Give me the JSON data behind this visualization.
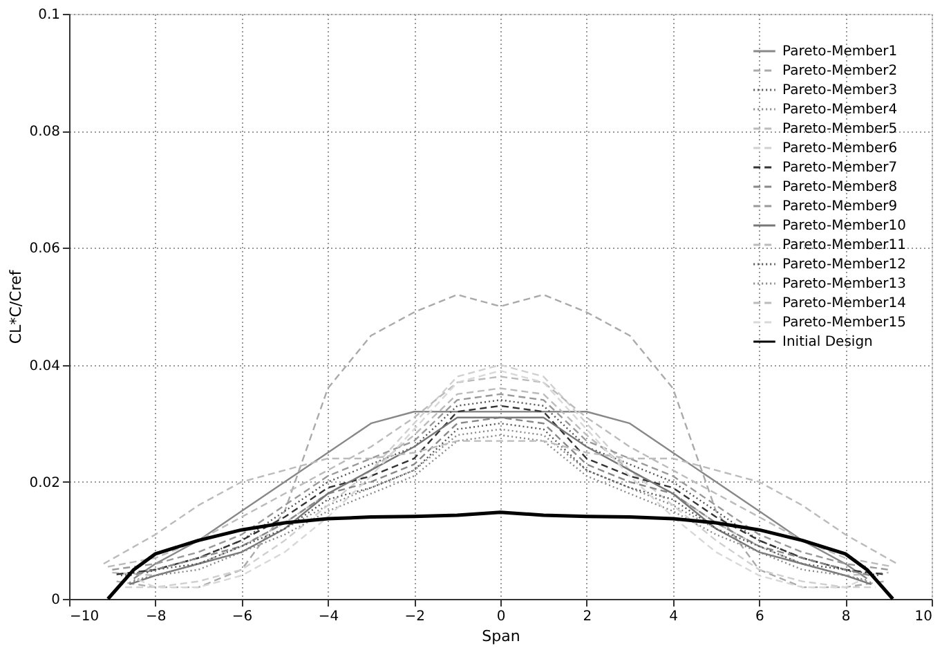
{
  "chart_data": {
    "type": "line",
    "xlabel": "Span",
    "ylabel": "CL*C/Cref",
    "xlim": [
      -10,
      10
    ],
    "xticks": [
      -10,
      -8,
      -6,
      -4,
      -2,
      0,
      2,
      4,
      6,
      8,
      10
    ],
    "ylim": [
      0,
      0.1
    ],
    "yticks": [
      0,
      0.02,
      0.04,
      0.06,
      0.08,
      0.1
    ],
    "grid": true,
    "legend": "top right",
    "marker": "none",
    "series": [
      {
        "name": "Pareto-Member1",
        "color": "#888888",
        "line_style": "solid",
        "x": [
          -8.5,
          -8,
          -7,
          -6,
          -5,
          -4,
          -3,
          -2,
          -1,
          0,
          1,
          2,
          3,
          4,
          5,
          6,
          7,
          8,
          8.5
        ],
        "values": [
          0.0035,
          0.006,
          0.01,
          0.015,
          0.02,
          0.025,
          0.03,
          0.032,
          0.032,
          0.032,
          0.032,
          0.032,
          0.03,
          0.025,
          0.02,
          0.015,
          0.01,
          0.006,
          0.0035
        ]
      },
      {
        "name": "Pareto-Member2",
        "color": "#aaaaaa",
        "line_style": "dashed",
        "x": [
          -8.9,
          -8,
          -7,
          -6,
          -5,
          -4,
          -3,
          -2,
          -1,
          0,
          1,
          2,
          3,
          4,
          5,
          6,
          7,
          8,
          8.9
        ],
        "values": [
          0.003,
          0.002,
          0.002,
          0.005,
          0.015,
          0.036,
          0.045,
          0.049,
          0.052,
          0.05,
          0.052,
          0.049,
          0.045,
          0.036,
          0.015,
          0.005,
          0.002,
          0.002,
          0.003
        ]
      },
      {
        "name": "Pareto-Member3",
        "color": "#555555",
        "line_style": "dotted",
        "x": [
          -8.8,
          -8,
          -7,
          -6,
          -5,
          -4,
          -3,
          -2,
          -1,
          0,
          1,
          2,
          3,
          4,
          5,
          6,
          7,
          8,
          8.8
        ],
        "values": [
          0.004,
          0.005,
          0.007,
          0.01,
          0.015,
          0.02,
          0.023,
          0.026,
          0.033,
          0.034,
          0.033,
          0.026,
          0.023,
          0.02,
          0.015,
          0.01,
          0.007,
          0.005,
          0.004
        ]
      },
      {
        "name": "Pareto-Member4",
        "color": "#888888",
        "line_style": "dotted",
        "x": [
          -8.6,
          -8,
          -7,
          -6,
          -5,
          -4,
          -3,
          -2,
          -1,
          0,
          1,
          2,
          3,
          4,
          5,
          6,
          7,
          8,
          8.6
        ],
        "values": [
          0.0028,
          0.004,
          0.005,
          0.008,
          0.012,
          0.016,
          0.019,
          0.022,
          0.028,
          0.029,
          0.028,
          0.022,
          0.019,
          0.016,
          0.012,
          0.008,
          0.005,
          0.004,
          0.0028
        ]
      },
      {
        "name": "Pareto-Member5",
        "color": "#bbbbbb",
        "line_style": "dashed",
        "x": [
          -9,
          -8,
          -7,
          -6,
          -5,
          -4,
          -3,
          -2,
          -1,
          0,
          1,
          2,
          3,
          4,
          5,
          6,
          7,
          8,
          9
        ],
        "values": [
          0.0045,
          0.004,
          0.006,
          0.009,
          0.013,
          0.018,
          0.022,
          0.028,
          0.035,
          0.036,
          0.035,
          0.028,
          0.022,
          0.018,
          0.013,
          0.009,
          0.006,
          0.004,
          0.0045
        ]
      },
      {
        "name": "Pareto-Member6",
        "color": "#d0d0d0",
        "line_style": "dashed",
        "x": [
          -8.7,
          -8,
          -7,
          -6,
          -5,
          -4,
          -3,
          -2,
          -1,
          0,
          1,
          2,
          3,
          4,
          5,
          6,
          7,
          8,
          8.7
        ],
        "values": [
          0.002,
          0.002,
          0.003,
          0.005,
          0.01,
          0.016,
          0.022,
          0.03,
          0.038,
          0.04,
          0.038,
          0.03,
          0.022,
          0.016,
          0.01,
          0.005,
          0.003,
          0.002,
          0.002
        ]
      },
      {
        "name": "Pareto-Member7",
        "color": "#333333",
        "line_style": "dashed",
        "x": [
          -8.9,
          -8,
          -7,
          -6,
          -5,
          -4,
          -3,
          -2,
          -1,
          0,
          1,
          2,
          3,
          4,
          5,
          6,
          7,
          8,
          8.9
        ],
        "values": [
          0.0042,
          0.005,
          0.007,
          0.01,
          0.014,
          0.019,
          0.021,
          0.024,
          0.032,
          0.033,
          0.032,
          0.024,
          0.021,
          0.019,
          0.014,
          0.01,
          0.007,
          0.005,
          0.0042
        ]
      },
      {
        "name": "Pareto-Member8",
        "color": "#888888",
        "line_style": "dashed",
        "x": [
          -8.7,
          -8,
          -7,
          -6,
          -5,
          -4,
          -3,
          -2,
          -1,
          0,
          1,
          2,
          3,
          4,
          5,
          6,
          7,
          8,
          8.7
        ],
        "values": [
          0.0038,
          0.005,
          0.007,
          0.009,
          0.013,
          0.018,
          0.02,
          0.023,
          0.03,
          0.031,
          0.03,
          0.023,
          0.02,
          0.018,
          0.013,
          0.009,
          0.007,
          0.005,
          0.0038
        ]
      },
      {
        "name": "Pareto-Member9",
        "color": "#999999",
        "line_style": "dashed",
        "x": [
          -9,
          -8,
          -7,
          -6,
          -5,
          -4,
          -3,
          -2,
          -1,
          0,
          1,
          2,
          3,
          4,
          5,
          6,
          7,
          8,
          9
        ],
        "values": [
          0.005,
          0.006,
          0.008,
          0.011,
          0.016,
          0.021,
          0.024,
          0.027,
          0.034,
          0.035,
          0.034,
          0.027,
          0.024,
          0.021,
          0.016,
          0.011,
          0.008,
          0.006,
          0.005
        ]
      },
      {
        "name": "Pareto-Member10",
        "color": "#777777",
        "line_style": "solid",
        "x": [
          -8.6,
          -8,
          -7,
          -6,
          -5,
          -4,
          -3,
          -2,
          -1,
          0,
          1,
          2,
          3,
          4,
          5,
          6,
          7,
          8,
          8.6
        ],
        "values": [
          0.0025,
          0.004,
          0.006,
          0.008,
          0.012,
          0.018,
          0.022,
          0.026,
          0.031,
          0.031,
          0.031,
          0.026,
          0.022,
          0.018,
          0.012,
          0.008,
          0.006,
          0.004,
          0.0025
        ]
      },
      {
        "name": "Pareto-Member11",
        "color": "#bbbbbb",
        "line_style": "dashed",
        "x": [
          -9.1,
          -8,
          -7,
          -6,
          -5,
          -4,
          -3,
          -2,
          -1,
          0,
          1,
          2,
          3,
          4,
          5,
          6,
          7,
          8,
          9.1
        ],
        "values": [
          0.0055,
          0.007,
          0.01,
          0.014,
          0.018,
          0.022,
          0.026,
          0.031,
          0.037,
          0.038,
          0.037,
          0.031,
          0.026,
          0.022,
          0.018,
          0.014,
          0.01,
          0.007,
          0.0055
        ]
      },
      {
        "name": "Pareto-Member12",
        "color": "#555555",
        "line_style": "dotted",
        "x": [
          -8.2,
          -8,
          -7,
          -6,
          -5,
          -4,
          -3,
          -2,
          -1,
          0,
          1,
          2,
          3,
          4,
          5,
          6,
          7,
          8,
          8.2
        ],
        "values": [
          0.0045,
          0.005,
          0.006,
          0.009,
          0.012,
          0.017,
          0.019,
          0.022,
          0.029,
          0.03,
          0.029,
          0.022,
          0.019,
          0.017,
          0.012,
          0.009,
          0.006,
          0.005,
          0.0045
        ]
      },
      {
        "name": "Pareto-Member13",
        "color": "#888888",
        "line_style": "dotted",
        "x": [
          -8.5,
          -8,
          -7,
          -6,
          -5,
          -4,
          -3,
          -2,
          -1,
          0,
          1,
          2,
          3,
          4,
          5,
          6,
          7,
          8,
          8.5
        ],
        "values": [
          0.0032,
          0.004,
          0.006,
          0.008,
          0.011,
          0.015,
          0.018,
          0.021,
          0.027,
          0.028,
          0.027,
          0.021,
          0.018,
          0.015,
          0.011,
          0.008,
          0.006,
          0.004,
          0.0032
        ]
      },
      {
        "name": "Pareto-Member14",
        "color": "#bbbbbb",
        "line_style": "dashed",
        "x": [
          -9.2,
          -8,
          -7,
          -6,
          -5,
          -4,
          -3,
          -2,
          -1,
          0,
          1,
          2,
          3,
          4,
          5,
          6,
          7,
          8,
          9.2
        ],
        "values": [
          0.006,
          0.011,
          0.016,
          0.02,
          0.022,
          0.024,
          0.024,
          0.025,
          0.027,
          0.027,
          0.027,
          0.025,
          0.024,
          0.024,
          0.022,
          0.02,
          0.016,
          0.011,
          0.006
        ]
      },
      {
        "name": "Pareto-Member15",
        "color": "#d8d8d8",
        "line_style": "dashed",
        "x": [
          -8.4,
          -8,
          -7,
          -6,
          -5,
          -4,
          -3,
          -2,
          -1,
          0,
          1,
          2,
          3,
          4,
          5,
          6,
          7,
          8,
          8.4
        ],
        "values": [
          0.0033,
          0.002,
          0.002,
          0.004,
          0.008,
          0.014,
          0.021,
          0.029,
          0.037,
          0.039,
          0.037,
          0.029,
          0.021,
          0.014,
          0.008,
          0.004,
          0.002,
          0.002,
          0.0033
        ]
      },
      {
        "name": "Initial Design",
        "color": "#000000",
        "line_style": "solid",
        "x": [
          -9.1,
          -8.5,
          -8,
          -7,
          -6,
          -5,
          -4,
          -3,
          -2,
          -1,
          0,
          1,
          2,
          3,
          4,
          5,
          6,
          7,
          8,
          8.5,
          9.1
        ],
        "values": [
          0,
          0.005,
          0.0077,
          0.01,
          0.0118,
          0.013,
          0.0137,
          0.014,
          0.0141,
          0.0143,
          0.0148,
          0.0143,
          0.0141,
          0.014,
          0.0137,
          0.013,
          0.0118,
          0.01,
          0.0077,
          0.005,
          0
        ]
      }
    ]
  }
}
